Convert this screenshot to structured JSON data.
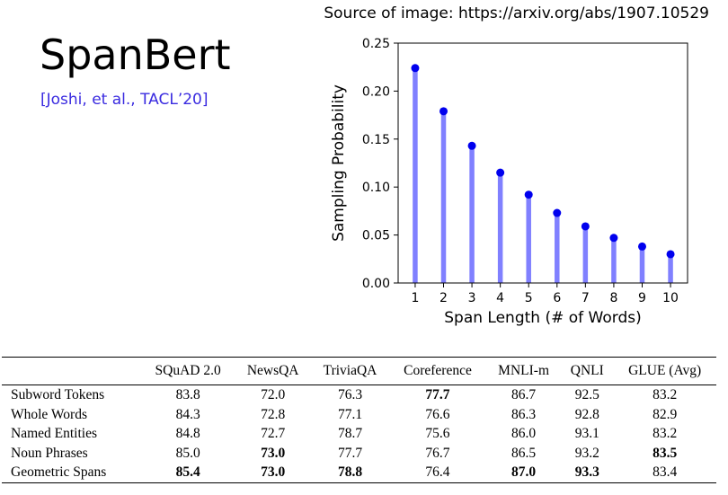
{
  "slide": {
    "title": "SpanBert",
    "citation": "[Joshi, et al., TACL’20]",
    "source_note": "Source of image: https://arxiv.org/abs/1907.10529"
  },
  "chart_data": {
    "type": "stem",
    "xlabel": "Span Length (# of Words)",
    "ylabel": "Sampling Probability",
    "x": [
      1,
      2,
      3,
      4,
      5,
      6,
      7,
      8,
      9,
      10
    ],
    "values": [
      0.224,
      0.179,
      0.143,
      0.115,
      0.092,
      0.073,
      0.059,
      0.047,
      0.038,
      0.03
    ],
    "ylim": [
      0.0,
      0.25
    ],
    "yticks": [
      "0.00",
      "0.05",
      "0.10",
      "0.15",
      "0.20",
      "0.25"
    ],
    "xticks": [
      "1",
      "2",
      "3",
      "4",
      "5",
      "6",
      "7",
      "8",
      "9",
      "10"
    ],
    "grid": false,
    "colors": {
      "stem": "#8080ff",
      "marker": "#0000ee"
    }
  },
  "table": {
    "columns": [
      "",
      "SQuAD 2.0",
      "NewsQA",
      "TriviaQA",
      "Coreference",
      "MNLI-m",
      "QNLI",
      "GLUE (Avg)"
    ],
    "rows": [
      {
        "label": "Subword Tokens",
        "cells": [
          "83.8",
          "72.0",
          "76.3",
          "77.7",
          "86.7",
          "92.5",
          "83.2"
        ],
        "bold": [
          false,
          false,
          false,
          true,
          false,
          false,
          false
        ]
      },
      {
        "label": "Whole Words",
        "cells": [
          "84.3",
          "72.8",
          "77.1",
          "76.6",
          "86.3",
          "92.8",
          "82.9"
        ],
        "bold": [
          false,
          false,
          false,
          false,
          false,
          false,
          false
        ]
      },
      {
        "label": "Named Entities",
        "cells": [
          "84.8",
          "72.7",
          "78.7",
          "75.6",
          "86.0",
          "93.1",
          "83.2"
        ],
        "bold": [
          false,
          false,
          false,
          false,
          false,
          false,
          false
        ]
      },
      {
        "label": "Noun Phrases",
        "cells": [
          "85.0",
          "73.0",
          "77.7",
          "76.7",
          "86.5",
          "93.2",
          "83.5"
        ],
        "bold": [
          false,
          true,
          false,
          false,
          false,
          false,
          true
        ]
      },
      {
        "label": "Geometric Spans",
        "cells": [
          "85.4",
          "73.0",
          "78.8",
          "76.4",
          "87.0",
          "93.3",
          "83.4"
        ],
        "bold": [
          true,
          true,
          true,
          false,
          true,
          true,
          false
        ]
      }
    ]
  }
}
